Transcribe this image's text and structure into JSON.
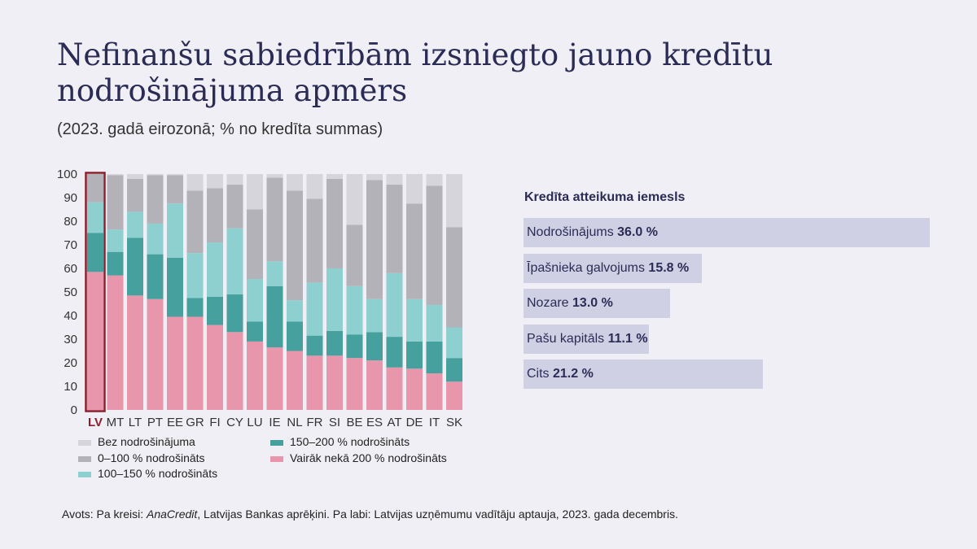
{
  "title": "Nefinanšu sabiedrībām izsniegto jauno kredītu nodrošinājuma apmērs",
  "subtitle": "(2023. gadā eirozonā; % no kredīta summas)",
  "chart_data": [
    {
      "type": "bar",
      "stacked": true,
      "ylim": [
        0,
        100
      ],
      "yticks": [
        0,
        10,
        20,
        30,
        40,
        50,
        60,
        70,
        80,
        90,
        100
      ],
      "categories": [
        "LV",
        "MT",
        "LT",
        "PT",
        "EE",
        "GR",
        "FI",
        "CY",
        "LU",
        "IE",
        "NL",
        "FR",
        "SI",
        "BE",
        "ES",
        "AT",
        "DE",
        "IT",
        "SK"
      ],
      "highlight": "LV",
      "series": [
        {
          "name": "Vairāk nekā 200 % nodrošināts",
          "color": "#e896ab",
          "values": [
            58.5,
            57,
            48.5,
            47,
            39.5,
            39.5,
            36,
            33,
            29,
            26.5,
            25,
            23,
            23,
            22,
            21,
            18,
            17.5,
            15.5,
            12
          ]
        },
        {
          "name": "150–200 % nodrošināts",
          "color": "#45a09e",
          "values": [
            16.5,
            10,
            24.5,
            19,
            25,
            8,
            12,
            16,
            8.5,
            26,
            12.5,
            8.5,
            10.5,
            10,
            12,
            13,
            11.5,
            13.5,
            10
          ]
        },
        {
          "name": "100–150 % nodrošināts",
          "color": "#8ecfcf",
          "values": [
            13,
            9.5,
            11,
            13,
            23,
            19,
            23,
            28,
            18,
            10.5,
            9,
            22.5,
            26.5,
            20.5,
            14,
            27,
            18,
            15.5,
            13
          ]
        },
        {
          "name": "0–100 % nodrošināts",
          "color": "#b3b2b9",
          "values": [
            12,
            23,
            14,
            20.5,
            12,
            26.5,
            23,
            18.5,
            29.5,
            35.5,
            46.5,
            35.5,
            38,
            26,
            50.5,
            37.5,
            40.5,
            50.5,
            42.5
          ]
        },
        {
          "name": "Bez nodrošinājuma",
          "color": "#d6d5db",
          "values": [
            0,
            0.5,
            2,
            0.5,
            0.5,
            7,
            6,
            4.5,
            15,
            1.5,
            7,
            10.5,
            2,
            21.5,
            2.5,
            4.5,
            12.5,
            5,
            22.5
          ]
        }
      ],
      "legend_order": [
        "Bez nodrošinājuma",
        "150–200 % nodrošināts",
        "0–100 % nodrošināts",
        "Vairāk nekā 200 % nodrošināts",
        "100–150 % nodrošināts"
      ]
    },
    {
      "type": "bar",
      "orientation": "horizontal",
      "title": "Kredīta atteikuma iemesls",
      "color": "#d0d0e4",
      "xlim": [
        0,
        36
      ],
      "categories": [
        "Nodrošinājums",
        "Īpašnieka galvojums",
        "Nozare",
        "Pašu kapitāls",
        "Cits"
      ],
      "values": [
        36.0,
        15.8,
        13.0,
        11.1,
        21.2
      ],
      "value_labels": [
        "36.0 %",
        "15.8 %",
        "13.0 %",
        "11.1 %",
        "21.2 %"
      ]
    }
  ],
  "source": {
    "prefix": "Avots: Pa kreisi: ",
    "italic": "AnaCredit",
    "suffix": ", Latvijas Bankas aprēķini. Pa labi: Latvijas uzņēmumu vadītāju aptauja, 2023. gada decembris."
  },
  "colors": {
    "title": "#2b2c55",
    "highlight_border": "#8b1e2d",
    "background": "#f0eff5"
  }
}
